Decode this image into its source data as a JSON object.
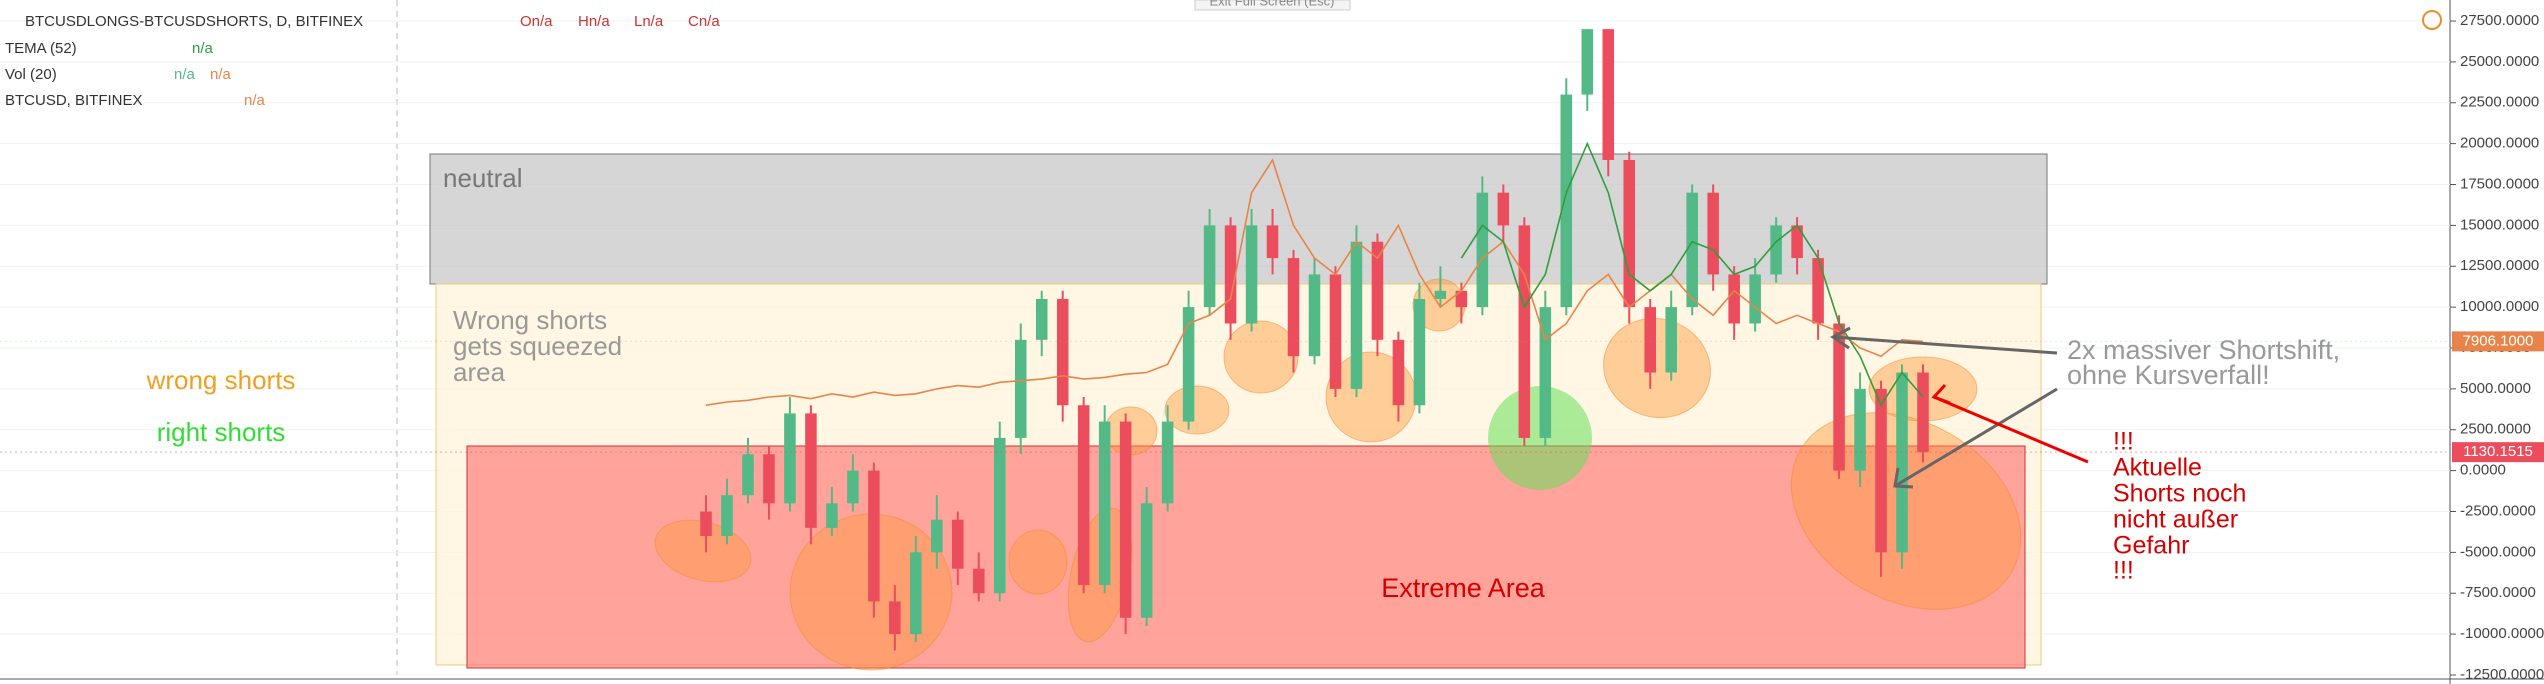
{
  "chart_data": {
    "type": "candlestick",
    "title": "BTCUSDLONGS-BTCUSDSHORTS, D, BITFINEX",
    "ohlc": [
      "On/a",
      "Hn/a",
      "Ln/a",
      "Cn/a"
    ],
    "indicators": [
      {
        "name": "TEMA (52)",
        "values": [
          "n/a"
        ]
      },
      {
        "name": "Vol (20)",
        "values": [
          "n/a",
          "n/a"
        ]
      },
      {
        "name": "BTCUSD, BITFINEX",
        "values": [
          "n/a"
        ]
      }
    ],
    "exit_button": "Exit Full Screen (Esc)",
    "up_color": "#53b987",
    "down_color": "#eb4d5c",
    "open": [
      -2500,
      -4000,
      -1500,
      1000,
      -2000,
      3500,
      -3500,
      -2000,
      0,
      -8000,
      -10000,
      -5000,
      -3000,
      -6000,
      -7500,
      2000,
      8000,
      10500,
      4000,
      -7000,
      3000,
      -9000,
      -2000,
      3000,
      10000,
      15000,
      9000,
      15000,
      13000,
      7000,
      12000,
      5000,
      14000,
      8000,
      4000,
      10500,
      11000,
      10000,
      17000,
      15000,
      2000,
      10000,
      23000,
      27000,
      19000,
      10000,
      6000,
      10000,
      17000,
      12000,
      9000,
      12000,
      15000,
      13000,
      9000,
      0,
      5000,
      -5000,
      6000
    ],
    "high": [
      -1500,
      -500,
      2000,
      1500,
      4500,
      4000,
      -1000,
      1000,
      500,
      -7000,
      -4000,
      -1500,
      -2500,
      -5000,
      3000,
      9000,
      11000,
      11000,
      4500,
      4000,
      3500,
      -1000,
      4000,
      11000,
      16000,
      15500,
      16000,
      16000,
      13500,
      13000,
      12500,
      15000,
      14500,
      8500,
      11500,
      12500,
      11500,
      18000,
      17500,
      15500,
      11000,
      24000,
      27000,
      27000,
      19500,
      10500,
      11000,
      17500,
      17500,
      12500,
      13000,
      15500,
      15500,
      13500,
      9500,
      6000,
      5500,
      6500,
      6500
    ],
    "low": [
      -5000,
      -4500,
      -2000,
      -3000,
      -2500,
      -4500,
      -4000,
      -2500,
      -9000,
      -11000,
      -10500,
      -6000,
      -7000,
      -8000,
      -8000,
      1000,
      7000,
      3000,
      -7500,
      -7500,
      -10000,
      -9500,
      -2500,
      2500,
      9500,
      8000,
      8500,
      12000,
      6000,
      6500,
      4500,
      4500,
      7000,
      3000,
      3500,
      10000,
      9000,
      9500,
      14000,
      1500,
      1500,
      9500,
      22000,
      18000,
      9000,
      5000,
      5500,
      9500,
      11000,
      8000,
      8500,
      11500,
      12000,
      8000,
      -500,
      -1000,
      -6500,
      -6000,
      500
    ],
    "close": [
      -4000,
      -1500,
      1000,
      -2000,
      3500,
      -3500,
      -2000,
      0,
      -8000,
      -10000,
      -5000,
      -3000,
      -6000,
      -7500,
      2000,
      8000,
      10500,
      4000,
      -7000,
      3000,
      -9000,
      -2000,
      3000,
      10000,
      15000,
      9000,
      15000,
      13000,
      7000,
      12000,
      5000,
      14000,
      8000,
      4000,
      10500,
      11000,
      10000,
      17000,
      15000,
      2000,
      10000,
      23000,
      27000,
      19000,
      10000,
      6000,
      10000,
      17000,
      12000,
      9000,
      12000,
      15000,
      13000,
      9000,
      0,
      5000,
      -5000,
      6000,
      1130.1515
    ],
    "close_label": "1130.1515",
    "lines": [
      {
        "name": "BTCUSD, BITFINEX",
        "color": "#e8844a",
        "last_label": "7906.1000",
        "values": [
          4000,
          4200,
          4300,
          4500,
          4600,
          4400,
          4700,
          4500,
          4800,
          4600,
          4700,
          5000,
          5200,
          5100,
          5400,
          5500,
          5600,
          5800,
          5600,
          5700,
          5900,
          6000,
          6500,
          9000,
          9500,
          10500,
          17000,
          19000,
          15000,
          13000,
          12000,
          14000,
          13000,
          15000,
          12000,
          10000,
          11000,
          13000,
          14000,
          12000,
          8000,
          9000,
          11000,
          12000,
          10000,
          11000,
          12000,
          10500,
          9500,
          11000,
          10000,
          9000,
          9500,
          9000,
          8500,
          7500,
          7000,
          8000,
          7906.1
        ]
      },
      {
        "name": "TEMA (52)",
        "color": "#2e9e3e",
        "values": [
          null,
          null,
          null,
          null,
          null,
          null,
          null,
          null,
          null,
          null,
          null,
          null,
          null,
          null,
          null,
          null,
          null,
          null,
          null,
          null,
          null,
          null,
          null,
          null,
          null,
          null,
          null,
          null,
          null,
          null,
          null,
          null,
          null,
          null,
          null,
          null,
          13000,
          15000,
          14000,
          10000,
          12000,
          17000,
          20000,
          17000,
          12000,
          11000,
          12000,
          14000,
          13500,
          12000,
          12500,
          14000,
          15000,
          13000,
          9000,
          7000,
          4000,
          6000,
          4500
        ]
      }
    ],
    "ylim": [
      -12500,
      27500
    ],
    "yticks": [
      {
        "value": 27500,
        "label": "27500.0000"
      },
      {
        "value": 25000,
        "label": "25000.0000"
      },
      {
        "value": 22500,
        "label": "22500.0000"
      },
      {
        "value": 20000,
        "label": "20000.0000"
      },
      {
        "value": 17500,
        "label": "17500.0000"
      },
      {
        "value": 15000,
        "label": "15000.0000"
      },
      {
        "value": 12500,
        "label": "12500.0000"
      },
      {
        "value": 10000,
        "label": "10000.0000"
      },
      {
        "value": 7500,
        "label": "7500.0000"
      },
      {
        "value": 5000,
        "label": "5000.0000"
      },
      {
        "value": 2500,
        "label": "2500.0000"
      },
      {
        "value": 0,
        "label": "0.0000"
      },
      {
        "value": -2500,
        "label": "-2500.0000"
      },
      {
        "value": -5000,
        "label": "-5000.0000"
      },
      {
        "value": -7500,
        "label": "-7500.0000"
      },
      {
        "value": -10000,
        "label": "-10000.0000"
      },
      {
        "value": -12500,
        "label": "-12500.0000"
      }
    ],
    "grid": true,
    "annotations": {
      "neutral": "neutral",
      "wrong_area": [
        "Wrong shorts",
        "gets squeezed",
        "area"
      ],
      "wrong_shorts": "wrong shorts",
      "right_shorts": "right shorts",
      "extreme": "Extreme Area",
      "shift": [
        "2x massiver Shortshift,",
        "ohne Kursverfall!"
      ],
      "warning": [
        "!!!",
        "Aktuelle",
        "Shorts noch",
        "nicht außer",
        "Gefahr",
        "!!!"
      ]
    }
  }
}
